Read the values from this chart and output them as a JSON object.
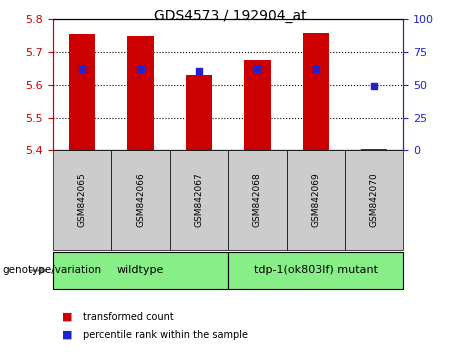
{
  "title": "GDS4573 / 192904_at",
  "samples": [
    "GSM842065",
    "GSM842066",
    "GSM842067",
    "GSM842068",
    "GSM842069",
    "GSM842070"
  ],
  "transformed_count": [
    5.755,
    5.75,
    5.63,
    5.675,
    5.76,
    5.405
  ],
  "percentile_rank": [
    62,
    62,
    61,
    62,
    62,
    49
  ],
  "ylim_left": [
    5.4,
    5.8
  ],
  "ylim_right": [
    0,
    100
  ],
  "yticks_left": [
    5.4,
    5.5,
    5.6,
    5.7,
    5.8
  ],
  "yticks_right": [
    0,
    25,
    50,
    75,
    100
  ],
  "bar_bottom": 5.4,
  "bar_color": "#cc0000",
  "dot_color": "#2222cc",
  "bg_plot": "#ffffff",
  "bg_xtick": "#cccccc",
  "bg_wildtype": "#88ee88",
  "bg_mutant": "#88ee88",
  "wildtype_label": "wildtype",
  "mutant_label": "tdp-1(ok803lf) mutant",
  "genotype_label": "genotype/variation",
  "legend_red": "transformed count",
  "legend_blue": "percentile rank within the sample",
  "left_tick_color": "#cc0000",
  "right_tick_color": "#2222cc",
  "title_fontsize": 10,
  "tick_fontsize": 8,
  "label_fontsize": 7.5,
  "legend_fontsize": 7
}
